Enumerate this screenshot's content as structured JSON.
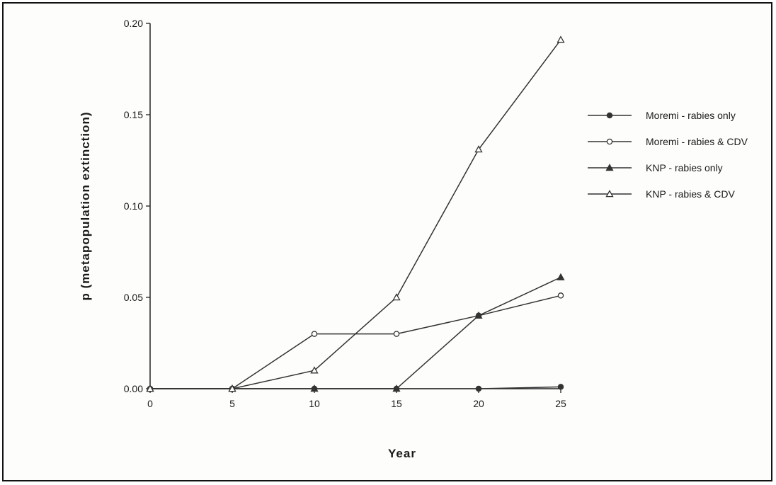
{
  "chart_data": {
    "type": "line",
    "title": "",
    "xlabel": "Year",
    "ylabel": "p  (metapopulation  extinction)",
    "x": [
      0,
      5,
      10,
      15,
      20,
      25
    ],
    "x_ticks": [
      "0",
      "5",
      "10",
      "15",
      "20",
      "25"
    ],
    "y_ticks": [
      "0.00",
      "0.05",
      "0.10",
      "0.15",
      "0.20"
    ],
    "y_tick_values": [
      0,
      0.05,
      0.1,
      0.15,
      0.2
    ],
    "xlim": [
      0,
      25
    ],
    "ylim": [
      0,
      0.2
    ],
    "grid": false,
    "legend_position": "right",
    "series": [
      {
        "name": "Moremi - rabies only",
        "marker": "filled-circle",
        "values": [
          0,
          0,
          0,
          0,
          0,
          0.001
        ]
      },
      {
        "name": "Moremi - rabies & CDV",
        "marker": "open-circle",
        "values": [
          0,
          0,
          0.03,
          0.03,
          0.04,
          0.051
        ]
      },
      {
        "name": "KNP - rabies only",
        "marker": "filled-triangle",
        "values": [
          0,
          0,
          0,
          0,
          0.04,
          0.061
        ]
      },
      {
        "name": "KNP - rabies & CDV",
        "marker": "open-triangle",
        "values": [
          0,
          0,
          0.01,
          0.05,
          0.131,
          0.191
        ]
      }
    ],
    "line_color": "#333333"
  }
}
